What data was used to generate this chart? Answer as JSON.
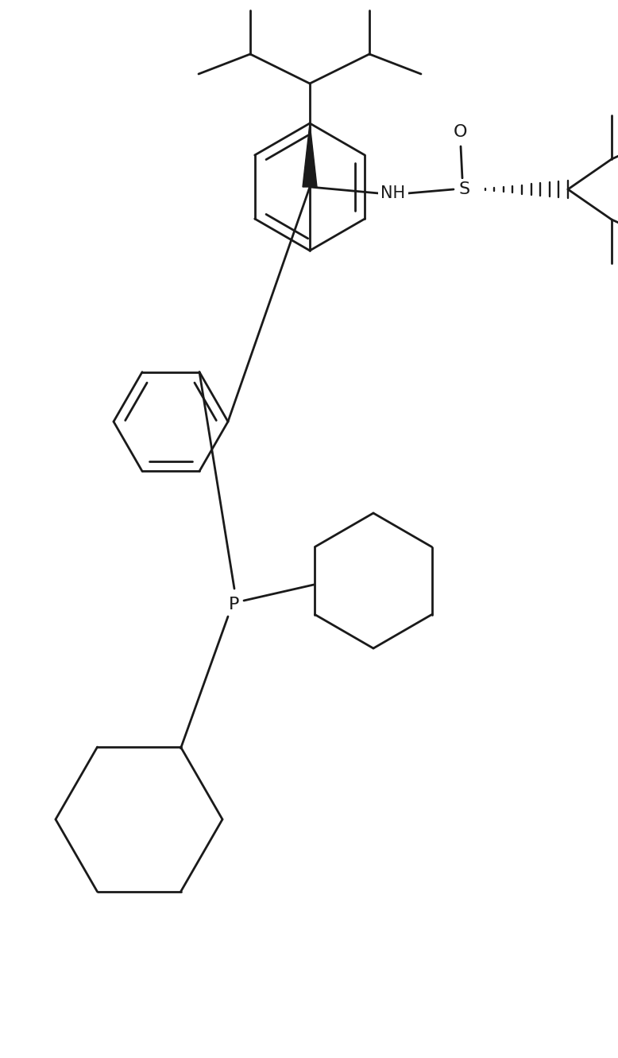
{
  "background_color": "#ffffff",
  "line_color": "#1a1a1a",
  "line_width": 2.0,
  "figsize": [
    7.78,
    13.3
  ],
  "dpi": 100,
  "xlim": [
    0,
    778
  ],
  "ylim": [
    0,
    1330
  ]
}
